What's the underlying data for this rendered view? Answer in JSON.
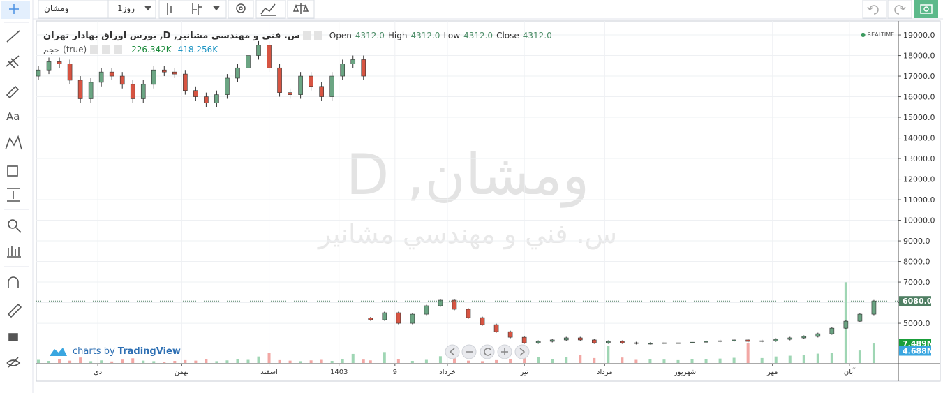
{
  "toolbar": {
    "symbol": "ومشان",
    "interval": "1روز"
  },
  "legend": {
    "title": "س. فني و مهندسي مشانير, D, بورس اوراق بهادار تهران",
    "ohlc": [
      {
        "label": "Open",
        "value": "4312.0"
      },
      {
        "label": "High",
        "value": "4312.0"
      },
      {
        "label": "Low",
        "value": "4312.0"
      },
      {
        "label": "Close",
        "value": "4312.0"
      }
    ],
    "volume_name": "حجم",
    "volume_param": "(true)",
    "volume_values": [
      "226.342K",
      "418.256K"
    ]
  },
  "status": "REALTIME",
  "watermark": {
    "symbol": "ومشان, D",
    "description": "س. فني و مهندسي مشانير"
  },
  "branding": {
    "prefix": "charts by",
    "name": "TradingView"
  },
  "chart_data": {
    "type": "candlestick",
    "x": [
      0,
      3,
      6,
      9,
      12,
      15,
      18,
      21,
      24,
      27,
      30,
      33,
      36,
      39,
      42,
      45,
      48,
      51,
      54,
      57,
      60,
      63,
      66,
      69,
      72,
      75,
      78,
      81,
      84,
      87,
      90,
      93,
      95,
      99,
      103,
      107,
      111,
      115,
      119,
      123,
      127,
      131,
      135,
      139,
      143,
      147,
      151,
      155,
      159,
      163,
      167,
      171,
      175,
      179,
      183,
      187,
      191,
      195,
      199,
      203,
      207,
      211,
      215,
      219,
      223,
      227,
      231,
      235,
      239
    ],
    "open": [
      17000,
      17300,
      17700,
      17600,
      16800,
      15900,
      16700,
      17200,
      17000,
      16600,
      15900,
      16600,
      17300,
      17200,
      17100,
      16300,
      16000,
      15700,
      16100,
      16900,
      17400,
      18000,
      18500,
      17400,
      16200,
      16100,
      17000,
      16500,
      16000,
      17000,
      17600,
      17800,
      5250,
      5170,
      5510,
      5000,
      5440,
      5850,
      6120,
      5680,
      5270,
      4930,
      4590,
      4320,
      4050,
      4120,
      4190,
      4290,
      4190,
      4050,
      4120,
      4050,
      4020,
      4020,
      4050,
      4050,
      4080,
      4120,
      4150,
      4190,
      4120,
      4150,
      4220,
      4290,
      4360,
      4490,
      4760,
      5100,
      5440
    ],
    "high": [
      17500,
      17900,
      17900,
      17800,
      17000,
      16900,
      17400,
      17400,
      17200,
      16800,
      16800,
      17500,
      17500,
      17400,
      17300,
      16500,
      16200,
      16300,
      17100,
      17600,
      18200,
      18700,
      18700,
      17600,
      16400,
      17200,
      17200,
      16700,
      17200,
      17800,
      18000,
      18000,
      5300,
      5560,
      5560,
      5490,
      5900,
      6170,
      6170,
      5730,
      5320,
      4980,
      4640,
      4370,
      4170,
      4240,
      4340,
      4340,
      4240,
      4170,
      4170,
      4100,
      4070,
      4100,
      4100,
      4130,
      4170,
      4200,
      4240,
      4240,
      4200,
      4270,
      4340,
      4410,
      4540,
      4810,
      5150,
      5490,
      6130
    ],
    "low": [
      16800,
      17100,
      17400,
      16600,
      15700,
      15700,
      16500,
      16800,
      16400,
      15700,
      15700,
      16400,
      17000,
      16900,
      16100,
      15800,
      15500,
      15500,
      15900,
      16700,
      17200,
      17800,
      17200,
      16000,
      15900,
      15900,
      16300,
      15800,
      15800,
      16800,
      17400,
      16800,
      5120,
      5120,
      4950,
      4950,
      5390,
      5800,
      5630,
      5220,
      4880,
      4540,
      4270,
      4000,
      4000,
      4070,
      4140,
      4140,
      4000,
      4000,
      4000,
      3970,
      3970,
      3970,
      4000,
      4000,
      4030,
      4070,
      4100,
      4070,
      4070,
      4100,
      4170,
      4240,
      4310,
      4440,
      4710,
      5050,
      5390
    ],
    "close": [
      17300,
      17700,
      17600,
      16800,
      15900,
      16700,
      17200,
      17000,
      16600,
      15900,
      16600,
      17300,
      17200,
      17100,
      16300,
      16000,
      15700,
      16100,
      16900,
      17400,
      18000,
      18500,
      17400,
      16200,
      16100,
      17000,
      16500,
      16000,
      17000,
      17600,
      17800,
      17000,
      5170,
      5510,
      5000,
      5440,
      5850,
      6120,
      5680,
      5270,
      4930,
      4590,
      4320,
      4050,
      4120,
      4190,
      4290,
      4190,
      4050,
      4120,
      4050,
      4020,
      4020,
      4050,
      4050,
      4080,
      4120,
      4150,
      4190,
      4120,
      4150,
      4220,
      4290,
      4360,
      4490,
      4760,
      5100,
      5440,
      6080
    ],
    "volume": [
      1200000,
      800000,
      1500000,
      900000,
      2100000,
      700000,
      1000000,
      600000,
      1300000,
      1800000,
      900000,
      700000,
      500000,
      800000,
      1100000,
      900000,
      1400000,
      700000,
      1000000,
      1600000,
      1200000,
      2500000,
      3800000,
      1100000,
      900000,
      700000,
      1000000,
      1200000,
      800000,
      1500000,
      3500000,
      1300000,
      1000000,
      4200000,
      1500000,
      800000,
      1200000,
      2600000,
      1800000,
      900000,
      700000,
      1100000,
      1400000,
      3800000,
      2200000,
      1600000,
      2400000,
      3000000,
      1900000,
      6500000,
      2100000,
      1200000,
      1500000,
      1300000,
      1100000,
      1400000,
      1600000,
      1700000,
      2000000,
      7500000,
      1900000,
      2500000,
      2800000,
      3200000,
      3600000,
      4000000,
      31000000,
      4800000,
      7489000
    ],
    "up_color": "#6ba583",
    "down_color": "#d75442",
    "volume_up_color": "#9fd6b4",
    "volume_down_color": "#f2a7a4",
    "xlim": [
      0,
      246
    ],
    "xticks": [
      {
        "value": 17,
        "label": "دی"
      },
      {
        "value": 41,
        "label": "بهمن"
      },
      {
        "value": 66,
        "label": "اسفند"
      },
      {
        "value": 86,
        "label": "1403"
      },
      {
        "value": 102,
        "label": "9"
      },
      {
        "value": 117,
        "label": "خرداد"
      },
      {
        "value": 139,
        "label": "تیر"
      },
      {
        "value": 162,
        "label": "مرداد"
      },
      {
        "value": 185,
        "label": "شهریور"
      },
      {
        "value": 210,
        "label": "مهر"
      },
      {
        "value": 232,
        "label": "آبان"
      }
    ],
    "ylim": [
      3070,
      19510
    ],
    "yticks": [
      {
        "value": 5000,
        "label": "5000.0"
      },
      {
        "value": 6000,
        "label": "6000.0"
      },
      {
        "value": 7000,
        "label": "7000.0"
      },
      {
        "value": 8000,
        "label": "8000.0"
      },
      {
        "value": 9000,
        "label": "9000.0"
      },
      {
        "value": 10000,
        "label": "10000.0"
      },
      {
        "value": 11000,
        "label": "11000.0"
      },
      {
        "value": 12000,
        "label": "12000.0"
      },
      {
        "value": 13000,
        "label": "13000.0"
      },
      {
        "value": 14000,
        "label": "14000.0"
      },
      {
        "value": 15000,
        "label": "15000.0"
      },
      {
        "value": 16000,
        "label": "16000.0"
      },
      {
        "value": 17000,
        "label": "17000.0"
      },
      {
        "value": 18000,
        "label": "18000.0"
      },
      {
        "value": 19000,
        "label": "19000.0"
      }
    ],
    "y2lim": [
      0,
      130000000
    ],
    "grid": true,
    "markers": [
      {
        "value": 6080,
        "label": "6080.0",
        "axis": "y",
        "color": "#4f7f63"
      },
      {
        "value": 7489000,
        "label": "7.489M",
        "axis": "y2",
        "color": "#1a9e3a"
      },
      {
        "value": 4688000,
        "label": "4.688M",
        "axis": "y2",
        "color": "#3aa6e0"
      }
    ]
  }
}
